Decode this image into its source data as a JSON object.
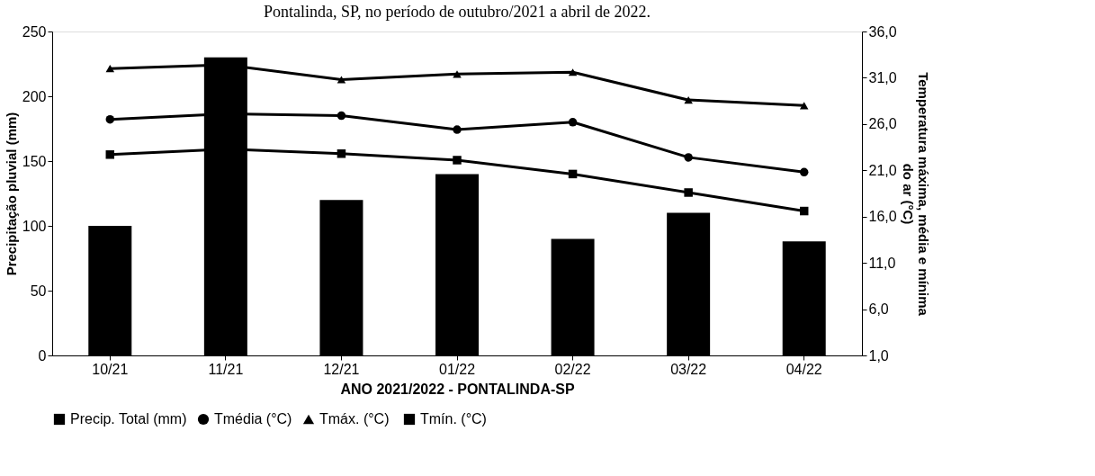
{
  "chart_data": {
    "type": "bar",
    "title": "Pontalinda, SP, no período de outubro/2021 a abril de 2022.",
    "xlabel": "ANO 2021/2022 - PONTALINDA-SP",
    "ylabel": "Precipitação pluvial (mm)",
    "y2label": "Temperatura máxima, média e mínima do ar (°C)",
    "categories": [
      "10/21",
      "11/21",
      "12/21",
      "01/22",
      "02/22",
      "03/22",
      "04/22"
    ],
    "series": [
      {
        "name": "Precip. Total (mm)",
        "color": "#000000",
        "values": [
          100,
          230,
          120,
          140,
          90,
          110,
          88
        ]
      },
      {
        "name": "Tmédia (°C)",
        "type": "line",
        "axis": "y2",
        "marker": "circle",
        "color": "#000000",
        "values": [
          26.5,
          27.1,
          26.9,
          25.4,
          26.2,
          22.4,
          20.8
        ]
      },
      {
        "name": "Tmáx.  (°C)",
        "type": "line",
        "axis": "y2",
        "marker": "triangle",
        "color": "#000000",
        "values": [
          32.0,
          32.4,
          30.8,
          31.4,
          31.6,
          28.6,
          28.0
        ]
      },
      {
        "name": "Tmín. (°C)",
        "type": "line",
        "axis": "y2",
        "marker": "square",
        "color": "#000000",
        "values": [
          22.7,
          23.3,
          22.8,
          22.1,
          20.6,
          18.6,
          16.6
        ]
      }
    ],
    "ylim": [
      0,
      250
    ],
    "yticks": [
      0,
      50,
      100,
      150,
      200,
      250
    ],
    "y2lim": [
      1,
      36
    ],
    "y2ticks": [
      {
        "value": 1,
        "label": "1,0"
      },
      {
        "value": 6,
        "label": "6,0"
      },
      {
        "value": 11,
        "label": "11,0"
      },
      {
        "value": 16,
        "label": "16,0"
      },
      {
        "value": 21,
        "label": "21,0"
      },
      {
        "value": 26,
        "label": "26,0"
      },
      {
        "value": 31,
        "label": "31,0"
      },
      {
        "value": 36,
        "label": "36,0"
      }
    ],
    "grid": false,
    "legend": "bottom"
  }
}
